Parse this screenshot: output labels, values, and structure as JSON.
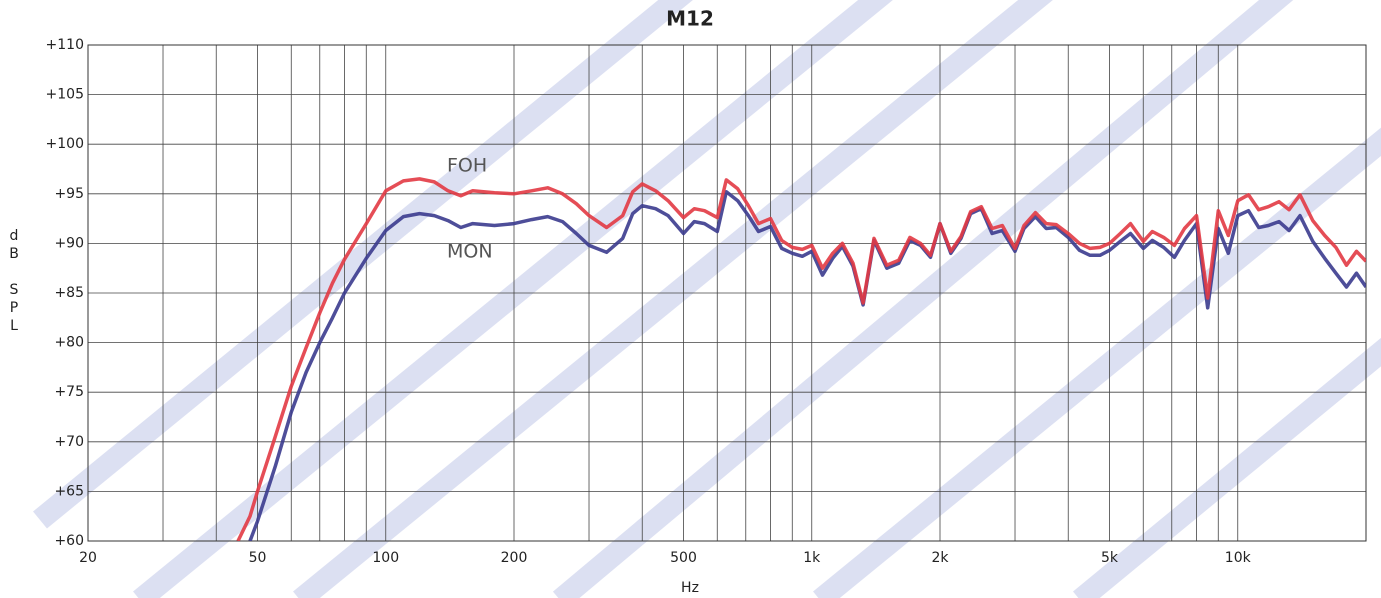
{
  "chart_data": {
    "type": "line",
    "title": "M12",
    "x_label": "Hz",
    "y_label": "dB SPL",
    "x_log": true,
    "grid": true,
    "xlim": [
      20,
      20000
    ],
    "ylim": [
      60,
      110
    ],
    "xticks": [
      20,
      50,
      100,
      200,
      500,
      {
        "value": 1000,
        "label": "1k"
      },
      {
        "value": 2000,
        "label": "2k"
      },
      {
        "value": 5000,
        "label": "5k"
      },
      {
        "value": 10000,
        "label": "10k"
      }
    ],
    "x_minor_grid": [
      30,
      40,
      60,
      70,
      80,
      90,
      300,
      400,
      600,
      700,
      800,
      900,
      3000,
      4000,
      6000,
      7000,
      8000,
      9000,
      20000
    ],
    "yticks": [
      {
        "value": 60,
        "label": "+60"
      },
      {
        "value": 65,
        "label": "+65"
      },
      {
        "value": 70,
        "label": "+70"
      },
      {
        "value": 75,
        "label": "+75"
      },
      {
        "value": 80,
        "label": "+80"
      },
      {
        "value": 85,
        "label": "+85"
      },
      {
        "value": 90,
        "label": "+90"
      },
      {
        "value": 95,
        "label": "+95"
      },
      {
        "value": 100,
        "label": "+100"
      },
      {
        "value": 105,
        "label": "+105"
      },
      {
        "value": 110,
        "label": "+110"
      }
    ],
    "x": [
      45,
      48,
      50,
      55,
      60,
      65,
      70,
      75,
      80,
      90,
      100,
      110,
      120,
      130,
      140,
      150,
      160,
      180,
      200,
      220,
      240,
      260,
      280,
      300,
      330,
      360,
      380,
      400,
      430,
      460,
      500,
      530,
      560,
      600,
      630,
      670,
      710,
      750,
      800,
      850,
      900,
      950,
      1000,
      1060,
      1120,
      1180,
      1250,
      1320,
      1400,
      1500,
      1600,
      1700,
      1800,
      1900,
      2000,
      2120,
      2240,
      2360,
      2500,
      2650,
      2800,
      3000,
      3150,
      3350,
      3550,
      3750,
      4000,
      4250,
      4500,
      4750,
      5000,
      5300,
      5600,
      6000,
      6300,
      6700,
      7100,
      7500,
      8000,
      8500,
      9000,
      9500,
      10000,
      10600,
      11200,
      11800,
      12500,
      13200,
      14000,
      15000,
      16000,
      17000,
      18000,
      19000,
      20000
    ],
    "series": [
      {
        "name": "FOH",
        "color": "#e23a44",
        "values": [
          60,
          62.5,
          65,
          70.5,
          75.6,
          79.5,
          83,
          86,
          88.4,
          92,
          95.3,
          96.3,
          96.5,
          96.2,
          95.3,
          94.8,
          95.3,
          95.1,
          95,
          95.3,
          95.6,
          95,
          94,
          92.8,
          91.6,
          92.8,
          95.2,
          96,
          95.3,
          94.3,
          92.6,
          93.5,
          93.3,
          92.6,
          96.4,
          95.5,
          93.8,
          92,
          92.5,
          90.3,
          89.6,
          89.4,
          89.8,
          87.5,
          89,
          90,
          88,
          84,
          90.5,
          87.8,
          88.3,
          90.6,
          90,
          88.8,
          92,
          89.2,
          90.7,
          93.2,
          93.7,
          91.5,
          91.8,
          89.5,
          91.8,
          93.1,
          92,
          91.9,
          91,
          90,
          89.5,
          89.6,
          90,
          91,
          92,
          90.2,
          91.2,
          90.6,
          89.8,
          91.5,
          92.8,
          84.5,
          93.3,
          90.8,
          94.3,
          94.9,
          93.4,
          93.7,
          94.2,
          93.4,
          94.9,
          92.3,
          90.8,
          89.6,
          87.8,
          89.2,
          88.2
        ]
      },
      {
        "name": "MON",
        "color": "#3b3b8e",
        "values": [
          null,
          60,
          62,
          67.5,
          73,
          77,
          80,
          82.5,
          85,
          88.5,
          91.3,
          92.7,
          93,
          92.8,
          92.3,
          91.6,
          92,
          91.8,
          92,
          92.4,
          92.7,
          92.2,
          91,
          89.8,
          89.1,
          90.5,
          93,
          93.8,
          93.5,
          92.8,
          91,
          92.2,
          92,
          91.2,
          95.2,
          94.3,
          92.8,
          91.2,
          91.7,
          89.5,
          89,
          88.7,
          89.2,
          86.8,
          88.5,
          89.7,
          87.7,
          83.8,
          90.3,
          87.5,
          88,
          90.3,
          89.8,
          88.6,
          92,
          89,
          90.5,
          93,
          93.5,
          91,
          91.3,
          89.2,
          91.5,
          92.7,
          91.5,
          91.6,
          90.6,
          89.3,
          88.8,
          88.8,
          89.3,
          90.2,
          91,
          89.5,
          90.3,
          89.6,
          88.6,
          90.3,
          92,
          83.5,
          91.5,
          89,
          92.8,
          93.3,
          91.6,
          91.8,
          92.2,
          91.3,
          92.8,
          90.2,
          88.5,
          87,
          85.6,
          87,
          85.6
        ]
      }
    ]
  }
}
